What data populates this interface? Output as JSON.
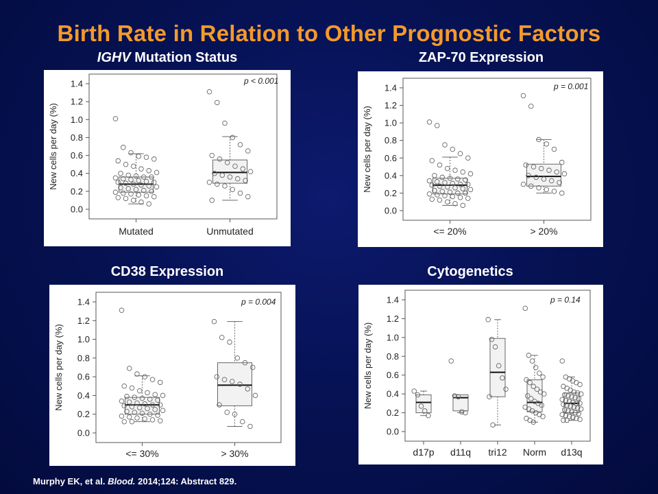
{
  "slide": {
    "title": "Birth Rate in Relation to Other Prognostic Factors"
  },
  "citation": {
    "pre": "Murphy EK, et al. ",
    "journal": "Blood.",
    "post": " 2014;124: Abstract 829."
  },
  "chart_data": [
    {
      "type": "box",
      "title_italic": "IGHV",
      "title": " Mutation Status",
      "ylabel": "New cells per day (%)",
      "ylim": [
        0,
        1.4
      ],
      "yticks": [
        "0.0",
        "0.2",
        "0.4",
        "0.6",
        "0.8",
        "1.0",
        "1.2",
        "1.4"
      ],
      "annotation": "p < 0.001",
      "categories": [
        {
          "label": "Mutated",
          "q1": 0.19,
          "median": 0.28,
          "q3": 0.36,
          "whisker_low": 0.06,
          "whisker_high": 0.62,
          "points": [
            1.01,
            0.69,
            0.63,
            0.59,
            0.58,
            0.56,
            0.54,
            0.5,
            0.48,
            0.45,
            0.43,
            0.41,
            0.4,
            0.38,
            0.37,
            0.36,
            0.36,
            0.35,
            0.34,
            0.33,
            0.32,
            0.31,
            0.3,
            0.3,
            0.29,
            0.28,
            0.27,
            0.26,
            0.25,
            0.24,
            0.23,
            0.22,
            0.21,
            0.2,
            0.19,
            0.18,
            0.17,
            0.16,
            0.15,
            0.14,
            0.13,
            0.12,
            0.1,
            0.08,
            0.06
          ]
        },
        {
          "label": "Unmutated",
          "q1": 0.29,
          "median": 0.41,
          "q3": 0.55,
          "whisker_low": 0.1,
          "whisker_high": 0.81,
          "points": [
            1.31,
            1.19,
            0.96,
            0.8,
            0.72,
            0.65,
            0.6,
            0.56,
            0.52,
            0.48,
            0.45,
            0.42,
            0.4,
            0.38,
            0.36,
            0.34,
            0.32,
            0.3,
            0.28,
            0.26,
            0.22,
            0.18,
            0.14,
            0.1
          ]
        }
      ]
    },
    {
      "type": "box",
      "title": "ZAP-70 Expression",
      "ylabel": "New cells per day (%)",
      "ylim": [
        0,
        1.4
      ],
      "yticks": [
        "0.0",
        "0.2",
        "0.4",
        "0.6",
        "0.8",
        "1.0",
        "1.2",
        "1.4"
      ],
      "annotation": "p = 0.001",
      "categories": [
        {
          "label": "<= 20%",
          "q1": 0.19,
          "median": 0.29,
          "q3": 0.37,
          "whisker_low": 0.06,
          "whisker_high": 0.61,
          "points": [
            1.01,
            0.97,
            0.75,
            0.7,
            0.65,
            0.6,
            0.57,
            0.52,
            0.48,
            0.46,
            0.44,
            0.42,
            0.4,
            0.38,
            0.37,
            0.36,
            0.35,
            0.34,
            0.33,
            0.32,
            0.31,
            0.3,
            0.3,
            0.29,
            0.28,
            0.27,
            0.26,
            0.25,
            0.24,
            0.23,
            0.22,
            0.21,
            0.2,
            0.2,
            0.19,
            0.18,
            0.17,
            0.16,
            0.15,
            0.14,
            0.13,
            0.12,
            0.1,
            0.08,
            0.06
          ]
        },
        {
          "label": "> 20%",
          "q1": 0.28,
          "median": 0.39,
          "q3": 0.53,
          "whisker_low": 0.2,
          "whisker_high": 0.81,
          "points": [
            1.31,
            1.19,
            0.81,
            0.76,
            0.7,
            0.55,
            0.52,
            0.5,
            0.48,
            0.46,
            0.44,
            0.42,
            0.4,
            0.38,
            0.36,
            0.34,
            0.32,
            0.3,
            0.28,
            0.26,
            0.24,
            0.22,
            0.2
          ]
        }
      ]
    },
    {
      "type": "box",
      "title": "CD38 Expression",
      "ylabel": "New cells per day (%)",
      "ylim": [
        0,
        1.4
      ],
      "yticks": [
        "0.0",
        "0.2",
        "0.4",
        "0.6",
        "0.8",
        "1.0",
        "1.2",
        "1.4"
      ],
      "annotation": "p = 0.004",
      "categories": [
        {
          "label": "<= 30%",
          "q1": 0.2,
          "median": 0.3,
          "q3": 0.38,
          "whisker_low": 0.12,
          "whisker_high": 0.61,
          "points": [
            1.31,
            0.69,
            0.63,
            0.6,
            0.57,
            0.54,
            0.5,
            0.48,
            0.45,
            0.43,
            0.41,
            0.4,
            0.39,
            0.38,
            0.37,
            0.36,
            0.35,
            0.34,
            0.33,
            0.32,
            0.31,
            0.3,
            0.3,
            0.29,
            0.28,
            0.27,
            0.26,
            0.25,
            0.24,
            0.23,
            0.22,
            0.21,
            0.2,
            0.19,
            0.18,
            0.17,
            0.16,
            0.15,
            0.14,
            0.13,
            0.12,
            0.12
          ]
        },
        {
          "label": "> 30%",
          "q1": 0.29,
          "median": 0.51,
          "q3": 0.75,
          "whisker_low": 0.07,
          "whisker_high": 1.19,
          "points": [
            1.19,
            1.02,
            0.97,
            0.8,
            0.75,
            0.7,
            0.6,
            0.57,
            0.55,
            0.52,
            0.47,
            0.4,
            0.3,
            0.22,
            0.2,
            0.12,
            0.07
          ]
        }
      ]
    },
    {
      "type": "box",
      "title": "Cytogenetics",
      "ylabel": "New cells per day (%)",
      "ylim": [
        0,
        1.4
      ],
      "yticks": [
        "0.0",
        "0.2",
        "0.4",
        "0.6",
        "0.8",
        "1.0",
        "1.2",
        "1.4"
      ],
      "annotation": "p = 0.14",
      "categories": [
        {
          "label": "d17p",
          "q1": 0.2,
          "median": 0.31,
          "q3": 0.39,
          "whisker_low": 0.17,
          "whisker_high": 0.43,
          "points": [
            0.43,
            0.39,
            0.27,
            0.22,
            0.17
          ]
        },
        {
          "label": "d11q",
          "q1": 0.22,
          "median": 0.36,
          "q3": 0.39,
          "whisker_low": 0.2,
          "whisker_high": 0.39,
          "points": [
            0.75,
            0.38,
            0.37,
            0.21,
            0.2
          ]
        },
        {
          "label": "tri12",
          "q1": 0.37,
          "median": 0.63,
          "q3": 0.99,
          "whisker_low": 0.07,
          "whisker_high": 1.19,
          "points": [
            1.19,
            0.98,
            0.9,
            0.7,
            0.57,
            0.45,
            0.37,
            0.07
          ]
        },
        {
          "label": "Norm",
          "q1": 0.21,
          "median": 0.31,
          "q3": 0.55,
          "whisker_low": 0.1,
          "whisker_high": 0.81,
          "points": [
            1.31,
            0.81,
            0.75,
            0.68,
            0.62,
            0.58,
            0.55,
            0.52,
            0.48,
            0.45,
            0.42,
            0.4,
            0.38,
            0.35,
            0.32,
            0.3,
            0.28,
            0.26,
            0.24,
            0.22,
            0.2,
            0.18,
            0.16,
            0.14,
            0.12,
            0.1
          ]
        },
        {
          "label": "d13q",
          "q1": 0.2,
          "median": 0.3,
          "q3": 0.41,
          "whisker_low": 0.12,
          "whisker_high": 0.58,
          "points": [
            0.75,
            0.58,
            0.56,
            0.54,
            0.52,
            0.5,
            0.48,
            0.46,
            0.44,
            0.42,
            0.41,
            0.4,
            0.39,
            0.38,
            0.37,
            0.36,
            0.35,
            0.34,
            0.33,
            0.32,
            0.31,
            0.3,
            0.3,
            0.29,
            0.28,
            0.27,
            0.26,
            0.25,
            0.24,
            0.23,
            0.22,
            0.21,
            0.2,
            0.19,
            0.18,
            0.17,
            0.16,
            0.15,
            0.14,
            0.13,
            0.12,
            0.12
          ]
        }
      ]
    }
  ]
}
